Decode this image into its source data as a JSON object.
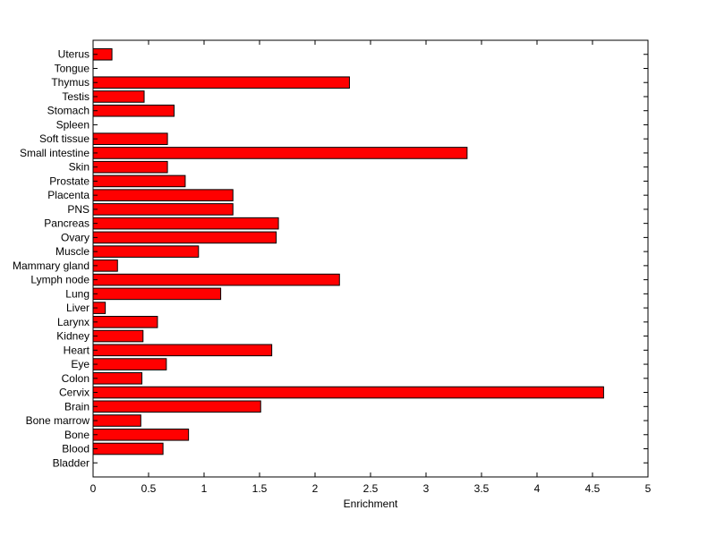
{
  "chart_data": {
    "type": "bar",
    "orientation": "horizontal",
    "title": "",
    "xlabel": "Enrichment",
    "ylabel": "",
    "xlim": [
      0,
      5
    ],
    "xticks": [
      0,
      0.5,
      1,
      1.5,
      2,
      2.5,
      3,
      3.5,
      4,
      4.5,
      5
    ],
    "xtick_labels": [
      "0",
      "0.5",
      "1",
      "1.5",
      "2",
      "2.5",
      "3",
      "3.5",
      "4",
      "4.5",
      "5"
    ],
    "grid": false,
    "categories": [
      "Bladder",
      "Blood",
      "Bone",
      "Bone marrow",
      "Brain",
      "Cervix",
      "Colon",
      "Eye",
      "Heart",
      "Kidney",
      "Larynx",
      "Liver",
      "Lung",
      "Lymph node",
      "Mammary gland",
      "Muscle",
      "Ovary",
      "Pancreas",
      "PNS",
      "Placenta",
      "Prostate",
      "Skin",
      "Small intestine",
      "Soft tissue",
      "Spleen",
      "Stomach",
      "Testis",
      "Thymus",
      "Tongue",
      "Uterus"
    ],
    "values": [
      0,
      0.63,
      0.86,
      0.43,
      1.51,
      4.6,
      0.44,
      0.66,
      1.61,
      0.45,
      0.58,
      0.11,
      1.15,
      2.22,
      0.22,
      0.95,
      1.65,
      1.67,
      1.26,
      1.26,
      0.83,
      0.67,
      3.37,
      0.67,
      0,
      0.73,
      0.46,
      2.31,
      0,
      0.17
    ],
    "bar_color": "#ff0000",
    "edge_color": "#000000"
  }
}
